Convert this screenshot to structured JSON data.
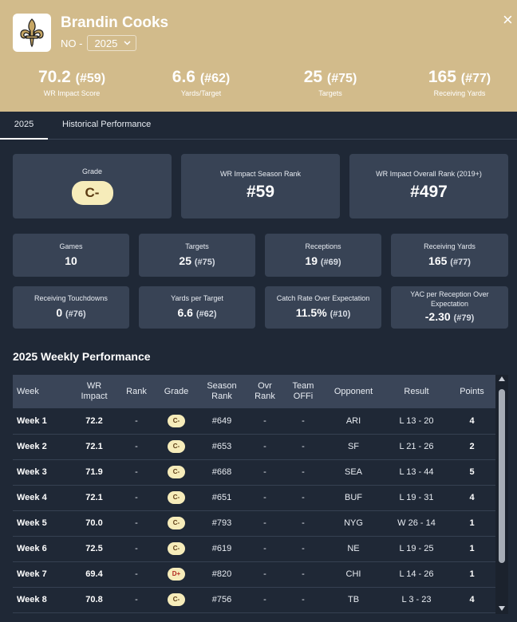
{
  "header": {
    "player_name": "Brandin Cooks",
    "team": "NO -",
    "season": "2025",
    "close_symbol": "×",
    "stats": [
      {
        "value": "70.2",
        "rank": "(#59)",
        "label": "WR Impact Score"
      },
      {
        "value": "6.6",
        "rank": "(#62)",
        "label": "Yards/Target"
      },
      {
        "value": "25",
        "rank": "(#75)",
        "label": "Targets"
      },
      {
        "value": "165",
        "rank": "(#77)",
        "label": "Receiving Yards"
      }
    ]
  },
  "tabs": [
    {
      "label": "2025",
      "active": true
    },
    {
      "label": "Historical Performance",
      "active": false
    }
  ],
  "summary": {
    "grade_label": "Grade",
    "grade": "C-",
    "season_rank_label": "WR Impact Season Rank",
    "season_rank": "#59",
    "overall_rank_label": "WR Impact Overall Rank (2019+)",
    "overall_rank": "#497"
  },
  "stat_cards": [
    {
      "label": "Games",
      "value": "10",
      "rank": ""
    },
    {
      "label": "Targets",
      "value": "25",
      "rank": "(#75)"
    },
    {
      "label": "Receptions",
      "value": "19",
      "rank": "(#69)"
    },
    {
      "label": "Receiving Yards",
      "value": "165",
      "rank": "(#77)"
    },
    {
      "label": "Receiving Touchdowns",
      "value": "0",
      "rank": "(#76)"
    },
    {
      "label": "Yards per Target",
      "value": "6.6",
      "rank": "(#62)"
    },
    {
      "label": "Catch Rate Over Expectation",
      "value": "11.5%",
      "rank": "(#10)"
    },
    {
      "label": "YAC per Reception Over Expectation",
      "value": "-2.30",
      "rank": "(#79)"
    }
  ],
  "weekly": {
    "title": "2025 Weekly Performance",
    "columns": [
      "Week",
      "WR Impact",
      "Rank",
      "Grade",
      "Season Rank",
      "Ovr Rank",
      "Team OFFi",
      "Opponent",
      "Result",
      "Points"
    ],
    "rows": [
      {
        "week": "Week 1",
        "impact": "72.2",
        "rank": "-",
        "grade": "C-",
        "season_rank": "#649",
        "ovr_rank": "-",
        "team_offi": "-",
        "opponent": "ARI",
        "result": "L 13 - 20",
        "points": "4"
      },
      {
        "week": "Week 2",
        "impact": "72.1",
        "rank": "-",
        "grade": "C-",
        "season_rank": "#653",
        "ovr_rank": "-",
        "team_offi": "-",
        "opponent": "SF",
        "result": "L 21 - 26",
        "points": "2"
      },
      {
        "week": "Week 3",
        "impact": "71.9",
        "rank": "-",
        "grade": "C-",
        "season_rank": "#668",
        "ovr_rank": "-",
        "team_offi": "-",
        "opponent": "SEA",
        "result": "L 13 - 44",
        "points": "5"
      },
      {
        "week": "Week 4",
        "impact": "72.1",
        "rank": "-",
        "grade": "C-",
        "season_rank": "#651",
        "ovr_rank": "-",
        "team_offi": "-",
        "opponent": "BUF",
        "result": "L 19 - 31",
        "points": "4"
      },
      {
        "week": "Week 5",
        "impact": "70.0",
        "rank": "-",
        "grade": "C-",
        "season_rank": "#793",
        "ovr_rank": "-",
        "team_offi": "-",
        "opponent": "NYG",
        "result": "W 26 - 14",
        "points": "1"
      },
      {
        "week": "Week 6",
        "impact": "72.5",
        "rank": "-",
        "grade": "C-",
        "season_rank": "#619",
        "ovr_rank": "-",
        "team_offi": "-",
        "opponent": "NE",
        "result": "L 19 - 25",
        "points": "1"
      },
      {
        "week": "Week 7",
        "impact": "69.4",
        "rank": "-",
        "grade": "D+",
        "season_rank": "#820",
        "ovr_rank": "-",
        "team_offi": "-",
        "opponent": "CHI",
        "result": "L 14 - 26",
        "points": "1"
      },
      {
        "week": "Week 8",
        "impact": "70.8",
        "rank": "-",
        "grade": "C-",
        "season_rank": "#756",
        "ovr_rank": "-",
        "team_offi": "-",
        "opponent": "TB",
        "result": "L 3 - 23",
        "points": "4"
      }
    ]
  },
  "colors": {
    "header_bg": "#d2bb8b",
    "page_bg": "#1f2836",
    "card_bg": "#384355",
    "grade_pill_bg": "#f6ecba"
  }
}
